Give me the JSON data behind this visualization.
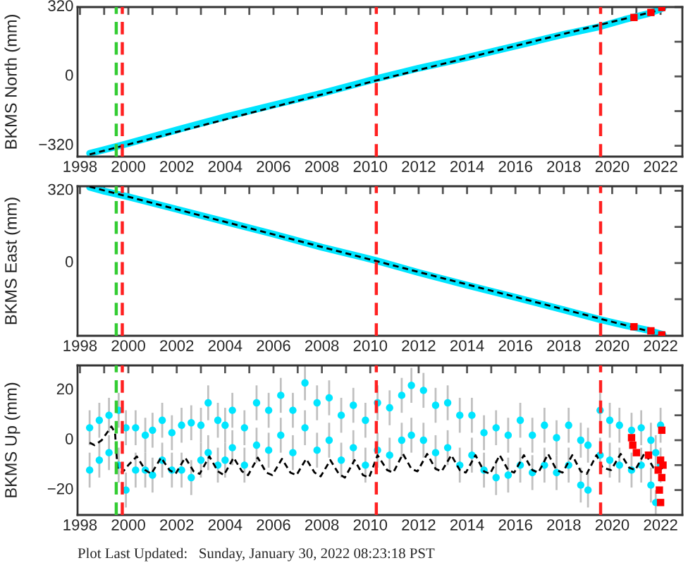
{
  "chart_data": [
    {
      "type": "line",
      "ylabel": "BKMS North (mm)",
      "xlim": [
        1997.9,
        2022.9
      ],
      "ylim": [
        -370,
        320
      ],
      "xticks": [
        1998,
        {
          "value": 1999,
          "label": null
        },
        2000,
        {
          "value": 2001,
          "label": null
        },
        2002,
        {
          "value": 2003,
          "label": null
        },
        2004,
        {
          "value": 2005,
          "label": null
        },
        2006,
        {
          "value": 2007,
          "label": null
        },
        2008,
        {
          "value": 2009,
          "label": null
        },
        2010,
        {
          "value": 2011,
          "label": null
        },
        2012,
        {
          "value": 2013,
          "label": null
        },
        2014,
        {
          "value": 2015,
          "label": null
        },
        2016,
        {
          "value": 2017,
          "label": null
        },
        2018,
        {
          "value": 2019,
          "label": null
        },
        2020,
        {
          "value": 2021,
          "label": null
        },
        2022
      ],
      "yticks": [
        320,
        {
          "value": 160,
          "label": null
        },
        0,
        {
          "value": -160,
          "label": null
        },
        {
          "value": -320,
          "label": "−320"
        }
      ],
      "series": [
        {
          "color": "#00e5ff",
          "line_style": "solid",
          "marker": "none",
          "x": [
            1998.4,
            1999,
            2000,
            2002,
            2004,
            2006,
            2008,
            2010.2,
            2012,
            2014,
            2016,
            2018,
            2019.5,
            2020.5,
            2021.5,
            2022.1
          ],
          "values": [
            -355,
            -338,
            -309,
            -247,
            -187,
            -132,
            -78,
            -12,
            38,
            87,
            140,
            194,
            230,
            262,
            290,
            315
          ]
        },
        {
          "color": "#000000",
          "line_style": "dashed",
          "marker": "none",
          "x": [
            1998.4,
            2010.2,
            2022.1
          ],
          "values": [
            -360,
            -20,
            310
          ]
        },
        {
          "type": "scatter",
          "color": "#ff0000",
          "marker": "square",
          "x": [
            2020.9,
            2021.6,
            2022.05
          ],
          "values": [
            272,
            295,
            318
          ]
        }
      ],
      "ref_lines": [
        {
          "axis": "x",
          "value": 1999.5,
          "color": "#33cc33",
          "line_style": "dashed"
        },
        {
          "axis": "x",
          "value": 1999.75,
          "color": "#ff2020",
          "line_style": "dashed"
        },
        {
          "axis": "x",
          "value": 2010.25,
          "color": "#ff2020",
          "line_style": "dashed"
        },
        {
          "axis": "x",
          "value": 2019.52,
          "color": "#ff2020",
          "line_style": "dashed"
        }
      ]
    },
    {
      "type": "line",
      "ylabel": "BKMS East (mm)",
      "xlim": [
        1997.9,
        2022.9
      ],
      "ylim": [
        -322,
        340
      ],
      "xticks": [
        1998,
        {
          "value": 1999,
          "label": null
        },
        2000,
        {
          "value": 2001,
          "label": null
        },
        2002,
        {
          "value": 2003,
          "label": null
        },
        2004,
        {
          "value": 2005,
          "label": null
        },
        2006,
        {
          "value": 2007,
          "label": null
        },
        2008,
        {
          "value": 2009,
          "label": null
        },
        2010,
        {
          "value": 2011,
          "label": null
        },
        2012,
        {
          "value": 2013,
          "label": null
        },
        2014,
        {
          "value": 2015,
          "label": null
        },
        2016,
        {
          "value": 2017,
          "label": null
        },
        2018,
        {
          "value": 2019,
          "label": null
        },
        2020,
        {
          "value": 2021,
          "label": null
        },
        2022
      ],
      "yticks": [
        320,
        {
          "value": 160,
          "label": null
        },
        0,
        {
          "value": -160,
          "label": null
        }
      ],
      "series": [
        {
          "color": "#00e5ff",
          "line_style": "solid",
          "marker": "none",
          "x": [
            1998.4,
            1999,
            2000,
            2002,
            2004,
            2006,
            2008,
            2010.2,
            2012,
            2014,
            2016,
            2018,
            2019.5,
            2020.5,
            2021.5,
            2022.1
          ],
          "values": [
            336,
            318,
            293,
            238,
            183,
            128,
            70,
            12,
            -42,
            -98,
            -152,
            -207,
            -250,
            -275,
            -298,
            -316
          ]
        },
        {
          "color": "#000000",
          "line_style": "dashed",
          "marker": "none",
          "x": [
            1998.4,
            2010.2,
            2022.1
          ],
          "values": [
            338,
            10,
            -318
          ]
        },
        {
          "type": "scatter",
          "color": "#ff0000",
          "marker": "square",
          "x": [
            2020.9,
            2021.6,
            2022.05
          ],
          "values": [
            -282,
            -300,
            -318
          ]
        }
      ],
      "ref_lines": [
        {
          "axis": "x",
          "value": 1999.5,
          "color": "#33cc33",
          "line_style": "dashed"
        },
        {
          "axis": "x",
          "value": 1999.75,
          "color": "#ff2020",
          "line_style": "dashed"
        },
        {
          "axis": "x",
          "value": 2010.25,
          "color": "#ff2020",
          "line_style": "dashed"
        },
        {
          "axis": "x",
          "value": 2019.52,
          "color": "#ff2020",
          "line_style": "dashed"
        }
      ]
    },
    {
      "type": "scatter",
      "ylabel": "BKMS Up (mm)",
      "xlim": [
        1997.9,
        2022.9
      ],
      "ylim": [
        -30,
        30
      ],
      "xticks": [
        1998,
        {
          "value": 1999,
          "label": null
        },
        2000,
        {
          "value": 2001,
          "label": null
        },
        2002,
        {
          "value": 2003,
          "label": null
        },
        2004,
        {
          "value": 2005,
          "label": null
        },
        2006,
        {
          "value": 2007,
          "label": null
        },
        2008,
        {
          "value": 2009,
          "label": null
        },
        2010,
        {
          "value": 2011,
          "label": null
        },
        2012,
        {
          "value": 2013,
          "label": null
        },
        2014,
        {
          "value": 2015,
          "label": null
        },
        2016,
        {
          "value": 2017,
          "label": null
        },
        2018,
        {
          "value": 2019,
          "label": null
        },
        2020,
        {
          "value": 2021,
          "label": null
        },
        2022
      ],
      "yticks": [
        20,
        {
          "value": 10,
          "label": null
        },
        0,
        {
          "value": -10,
          "label": null
        },
        {
          "value": -20,
          "label": "−20"
        }
      ],
      "series": [
        {
          "color": "#00e5ff",
          "marker": "circle",
          "x": [
            1998.4,
            1998.4,
            1998.8,
            1998.8,
            1999.2,
            1999.2,
            1999.6,
            1999.6,
            1999.9,
            1999.9,
            2000.3,
            2000.3,
            2000.7,
            2000.7,
            2001.0,
            2001.0,
            2001.4,
            2001.4,
            2001.8,
            2001.8,
            2002.2,
            2002.2,
            2002.6,
            2002.6,
            2003.0,
            2003.0,
            2003.3,
            2003.3,
            2003.7,
            2003.7,
            2004.0,
            2004.0,
            2004.3,
            2004.3,
            2004.8,
            2004.8,
            2005.3,
            2005.3,
            2005.8,
            2005.8,
            2006.3,
            2006.3,
            2006.8,
            2006.8,
            2007.3,
            2007.3,
            2007.8,
            2007.8,
            2008.3,
            2008.3,
            2008.8,
            2008.8,
            2009.3,
            2009.3,
            2009.8,
            2009.8,
            2010.3,
            2010.3,
            2010.8,
            2010.8,
            2011.3,
            2011.3,
            2011.7,
            2011.7,
            2012.2,
            2012.2,
            2012.7,
            2012.7,
            2013.2,
            2013.2,
            2013.7,
            2013.7,
            2014.2,
            2014.2,
            2014.7,
            2014.7,
            2015.2,
            2015.2,
            2015.7,
            2015.7,
            2016.2,
            2016.2,
            2016.7,
            2016.7,
            2017.2,
            2017.2,
            2017.7,
            2017.7,
            2018.2,
            2018.2,
            2018.7,
            2018.7,
            2019.0,
            2019.0,
            2019.5,
            2019.5,
            2019.9,
            2019.9,
            2020.3,
            2020.3,
            2020.8,
            2020.8,
            2021.2,
            2021.2,
            2021.6,
            2021.6,
            2021.8,
            2021.8,
            2022.0,
            2022.0
          ],
          "values": [
            5,
            -12,
            8,
            -8,
            10,
            -5,
            12,
            -10,
            5,
            -20,
            5,
            -12,
            2,
            -12,
            4,
            -14,
            8,
            -8,
            3,
            -12,
            6,
            -12,
            7,
            -15,
            6,
            -8,
            15,
            -5,
            8,
            -10,
            6,
            -8,
            12,
            -3,
            5,
            -10,
            15,
            -2,
            12,
            -4,
            18,
            2,
            12,
            -5,
            23,
            5,
            15,
            -4,
            17,
            0,
            10,
            -8,
            14,
            -3,
            8,
            -10,
            15,
            -4,
            13,
            -6,
            18,
            0,
            22,
            2,
            20,
            0,
            14,
            -5,
            15,
            -3,
            10,
            -10,
            10,
            -6,
            3,
            -12,
            5,
            -15,
            2,
            -14,
            8,
            -10,
            2,
            -13,
            6,
            -10,
            1,
            -13,
            6,
            -10,
            0,
            -18,
            -2,
            -20,
            12,
            -6,
            8,
            -8,
            6,
            -10,
            4,
            -12,
            5,
            -10,
            0,
            -18,
            -5,
            -25,
            6,
            -10
          ],
          "errors": [
            7,
            7,
            7,
            7,
            7,
            7,
            7,
            7,
            7,
            7,
            7,
            7,
            7,
            7,
            7,
            7,
            7,
            7,
            7,
            7,
            7,
            7,
            7,
            7,
            7,
            7,
            7,
            7,
            7,
            7,
            7,
            7,
            7,
            7,
            7,
            7,
            7,
            7,
            7,
            7,
            7,
            7,
            7,
            7,
            7,
            7,
            7,
            7,
            7,
            7,
            7,
            7,
            7,
            7,
            7,
            7,
            7,
            7,
            7,
            7,
            7,
            7,
            7,
            7,
            7,
            7,
            7,
            7,
            7,
            7,
            7,
            7,
            7,
            7,
            7,
            7,
            7,
            7,
            7,
            7,
            7,
            7,
            7,
            7,
            7,
            7,
            7,
            7,
            7,
            7,
            7,
            7,
            7,
            7,
            7,
            7,
            7,
            7,
            7,
            7,
            7,
            7,
            7,
            7,
            7,
            7,
            7,
            5,
            7,
            7
          ]
        },
        {
          "type": "line",
          "color": "#000000",
          "line_style": "dashed",
          "marker": "none",
          "x": [
            1998.4,
            1998.6,
            1998.9,
            1999.3,
            1999.45,
            1999.55,
            1999.75,
            2000.0,
            2000.35,
            2000.7,
            2000.95,
            2001.35,
            2001.7,
            2001.95,
            2002.35,
            2002.7,
            2002.95,
            2003.35,
            2003.7,
            2003.95,
            2004.35,
            2004.7,
            2004.95,
            2005.35,
            2005.7,
            2005.95,
            2006.35,
            2006.7,
            2006.95,
            2007.35,
            2007.7,
            2007.95,
            2008.35,
            2008.7,
            2008.95,
            2009.35,
            2009.7,
            2009.95,
            2010.3,
            2010.7,
            2010.95,
            2011.35,
            2011.7,
            2011.95,
            2012.35,
            2012.7,
            2012.95,
            2013.35,
            2013.7,
            2013.95,
            2014.35,
            2014.7,
            2014.95,
            2015.35,
            2015.7,
            2015.95,
            2016.35,
            2016.7,
            2016.95,
            2017.35,
            2017.7,
            2017.95,
            2018.35,
            2018.7,
            2018.95,
            2019.35,
            2019.6,
            2019.95,
            2020.35,
            2020.7,
            2020.95,
            2021.35,
            2021.7,
            2021.95,
            2022.1
          ],
          "values": [
            -1,
            -2,
            0,
            5.5,
            3,
            -11,
            -13,
            -10,
            -6.5,
            -12,
            -13.5,
            -7,
            -12,
            -13.5,
            -7,
            -12.5,
            -13.5,
            -6.5,
            -12.5,
            -14,
            -7,
            -12.5,
            -14,
            -7,
            -13,
            -14,
            -7.5,
            -13,
            -14,
            -7.5,
            -13,
            -14.5,
            -8,
            -13.5,
            -15,
            -8,
            -14,
            -15,
            -6,
            -12,
            -13,
            -5.5,
            -11.5,
            -12.5,
            -5.5,
            -11.5,
            -12.5,
            -6,
            -12,
            -13,
            -6,
            -12.5,
            -13.5,
            -6,
            -12,
            -13,
            -6,
            -12,
            -13,
            -5.5,
            -12,
            -13,
            -6,
            -12.5,
            -13.5,
            -6,
            -11,
            -12,
            -5.5,
            -11,
            -12,
            -5,
            -11,
            -12,
            -11
          ]
        },
        {
          "color": "#ff0000",
          "marker": "square",
          "x": [
            2020.8,
            2020.85,
            2021.0,
            2021.5,
            2021.9,
            2021.95,
            2022.0,
            2022.0,
            2022.05,
            2022.05,
            2022.1
          ],
          "values": [
            1,
            -2,
            -5,
            -6,
            -12,
            -20,
            -25,
            -8,
            4,
            -15,
            -10
          ]
        }
      ],
      "ref_lines": [
        {
          "axis": "x",
          "value": 1999.5,
          "color": "#33cc33",
          "line_style": "dashed"
        },
        {
          "axis": "x",
          "value": 1999.75,
          "color": "#ff2020",
          "line_style": "dashed"
        },
        {
          "axis": "x",
          "value": 2010.25,
          "color": "#ff2020",
          "line_style": "dashed"
        },
        {
          "axis": "x",
          "value": 2019.52,
          "color": "#ff2020",
          "line_style": "dashed"
        }
      ],
      "annotations": [
        "Plot Last Updated:   Sunday, January 30, 2022 08:23:18 PST"
      ]
    }
  ]
}
